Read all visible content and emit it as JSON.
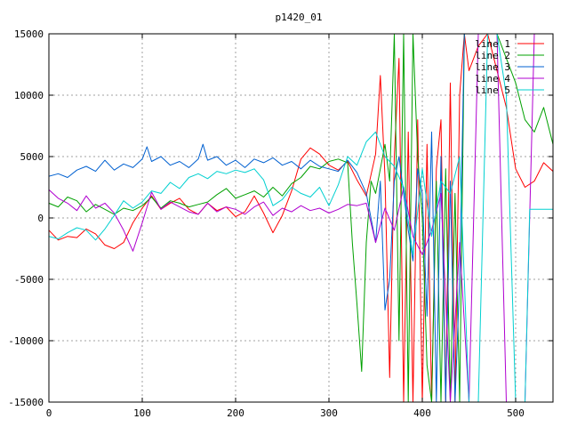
{
  "chart_data": {
    "type": "line",
    "title": "p1420_01",
    "xlabel": "",
    "ylabel": "",
    "xlim": [
      0,
      540
    ],
    "ylim": [
      -15000,
      15000
    ],
    "x_ticks": [
      0,
      100,
      200,
      300,
      400,
      500
    ],
    "y_ticks": [
      -15000,
      -10000,
      -5000,
      0,
      5000,
      10000,
      15000
    ],
    "grid": true,
    "legend_position": "top-right",
    "series": [
      {
        "name": "line 1",
        "color": "#ff0000",
        "x": [
          0,
          10,
          20,
          30,
          40,
          50,
          60,
          70,
          80,
          90,
          100,
          110,
          120,
          130,
          140,
          150,
          160,
          170,
          180,
          190,
          200,
          210,
          220,
          230,
          240,
          250,
          260,
          270,
          280,
          290,
          300,
          310,
          320,
          330,
          340,
          350,
          355,
          360,
          365,
          370,
          375,
          380,
          385,
          390,
          395,
          400,
          405,
          410,
          415,
          420,
          425,
          430,
          435,
          440,
          445,
          450,
          460,
          470,
          480,
          490,
          500,
          510,
          520,
          530,
          540
        ],
        "values": [
          -1000,
          -1800,
          -1500,
          -1600,
          -900,
          -1300,
          -2200,
          -2500,
          -2000,
          -400,
          800,
          1800,
          700,
          1200,
          1600,
          700,
          300,
          1200,
          600,
          900,
          100,
          500,
          1800,
          400,
          -1200,
          200,
          2200,
          4800,
          5700,
          5200,
          4300,
          3900,
          4600,
          3100,
          1800,
          5200,
          11600,
          3400,
          -13000,
          5000,
          13000,
          -15000,
          7000,
          -15000,
          8000,
          -15000,
          6000,
          -15000,
          4000,
          8000,
          -15000,
          11000,
          -15000,
          10000,
          15000,
          12000,
          14000,
          15000,
          12000,
          9000,
          4000,
          2500,
          3000,
          4500,
          3800
        ]
      },
      {
        "name": "line 2",
        "color": "#00a000",
        "x": [
          0,
          10,
          20,
          30,
          40,
          50,
          60,
          70,
          80,
          90,
          100,
          110,
          120,
          130,
          140,
          150,
          160,
          170,
          180,
          190,
          200,
          210,
          220,
          230,
          240,
          250,
          260,
          270,
          280,
          290,
          300,
          310,
          320,
          325,
          330,
          335,
          340,
          345,
          350,
          355,
          360,
          365,
          370,
          375,
          380,
          385,
          390,
          395,
          400,
          405,
          410,
          415,
          420,
          425,
          430,
          435,
          440,
          445,
          450,
          460,
          470,
          480,
          490,
          500,
          510,
          520,
          530,
          540
        ],
        "values": [
          1200,
          900,
          1700,
          1400,
          500,
          1100,
          700,
          300,
          800,
          600,
          1000,
          1700,
          800,
          1400,
          1200,
          900,
          1100,
          1300,
          1900,
          2400,
          1600,
          1900,
          2200,
          1700,
          2500,
          1800,
          2800,
          3300,
          4200,
          4000,
          4600,
          4800,
          4500,
          -2000,
          -7000,
          -12500,
          -2000,
          3000,
          2000,
          4000,
          6000,
          3000,
          15000,
          -10000,
          15000,
          -15000,
          15000,
          5000,
          0,
          -12000,
          -15000,
          3000,
          -15000,
          4000,
          -15000,
          2000,
          -15000,
          15000,
          15000,
          15000,
          15000,
          15000,
          13000,
          11000,
          8000,
          7000,
          9000,
          6000
        ]
      },
      {
        "name": "line 3",
        "color": "#0060d0",
        "x": [
          0,
          10,
          20,
          30,
          40,
          50,
          60,
          70,
          80,
          90,
          100,
          105,
          110,
          120,
          130,
          140,
          150,
          160,
          165,
          170,
          180,
          190,
          200,
          210,
          220,
          230,
          240,
          250,
          260,
          270,
          280,
          290,
          300,
          310,
          320,
          330,
          340,
          350,
          355,
          360,
          365,
          370,
          375,
          380,
          385,
          390,
          395,
          400,
          405,
          410,
          415,
          420,
          425,
          430,
          435,
          440,
          445,
          450,
          460,
          470,
          480,
          490,
          500,
          510,
          520,
          530,
          540
        ],
        "values": [
          3400,
          3600,
          3300,
          3900,
          4200,
          3800,
          4700,
          3900,
          4400,
          4100,
          4800,
          5800,
          4600,
          5000,
          4300,
          4600,
          4100,
          4800,
          6000,
          4700,
          5000,
          4300,
          4700,
          4100,
          4800,
          4500,
          4900,
          4300,
          4600,
          4000,
          4700,
          4200,
          4000,
          3800,
          4700,
          3700,
          2000,
          -2000,
          3000,
          -7500,
          -5000,
          3000,
          5000,
          2000,
          -1000,
          -3500,
          4000,
          2000,
          -8000,
          7000,
          -15000,
          5000,
          -15000,
          3000,
          -15000,
          -5000,
          15000,
          15000,
          15000,
          15000,
          15000,
          15000,
          15000,
          15000,
          15000,
          15000,
          15000
        ]
      },
      {
        "name": "line 4",
        "color": "#b000d0",
        "x": [
          0,
          10,
          20,
          30,
          40,
          50,
          60,
          70,
          80,
          90,
          100,
          110,
          120,
          130,
          140,
          150,
          160,
          170,
          180,
          190,
          200,
          210,
          220,
          230,
          240,
          250,
          260,
          270,
          280,
          290,
          300,
          310,
          320,
          330,
          340,
          350,
          360,
          370,
          380,
          390,
          400,
          410,
          420,
          430,
          440,
          450,
          460,
          470,
          480,
          490,
          500,
          510,
          520,
          525,
          530,
          540
        ],
        "values": [
          2300,
          1600,
          1200,
          600,
          1800,
          800,
          1200,
          400,
          -1000,
          -2700,
          -400,
          2100,
          700,
          1300,
          900,
          500,
          300,
          1200,
          500,
          900,
          700,
          300,
          900,
          1300,
          200,
          800,
          500,
          1000,
          600,
          800,
          400,
          700,
          1100,
          1000,
          1200,
          -2000,
          800,
          -1000,
          2500,
          -1500,
          -3000,
          -1000,
          2000,
          -15000,
          -2000,
          -15000,
          15000,
          15000,
          15000,
          -15000,
          -15000,
          -15000,
          15000,
          15000,
          15000,
          15000
        ]
      },
      {
        "name": "line 5",
        "color": "#00d0d0",
        "x": [
          0,
          10,
          20,
          30,
          40,
          50,
          60,
          70,
          80,
          90,
          100,
          110,
          120,
          130,
          140,
          150,
          160,
          170,
          180,
          190,
          200,
          210,
          220,
          230,
          240,
          250,
          260,
          270,
          280,
          290,
          300,
          310,
          320,
          330,
          340,
          350,
          360,
          370,
          380,
          390,
          400,
          410,
          420,
          430,
          440,
          450,
          460,
          470,
          480,
          490,
          500,
          510,
          515,
          520,
          530,
          540
        ],
        "values": [
          -1500,
          -1700,
          -1200,
          -800,
          -1000,
          -1800,
          -900,
          200,
          1400,
          800,
          1300,
          2200,
          2000,
          2900,
          2400,
          3300,
          3600,
          3200,
          3800,
          3600,
          3900,
          3700,
          4000,
          3100,
          1000,
          1500,
          2500,
          2000,
          1700,
          2500,
          1000,
          2700,
          5000,
          4300,
          6200,
          7000,
          5000,
          4200,
          2500,
          -3000,
          4000,
          -1500,
          3000,
          2000,
          5000,
          -15000,
          -15000,
          15000,
          15000,
          10000,
          -15000,
          -15000,
          700,
          700,
          700,
          700
        ]
      }
    ]
  }
}
